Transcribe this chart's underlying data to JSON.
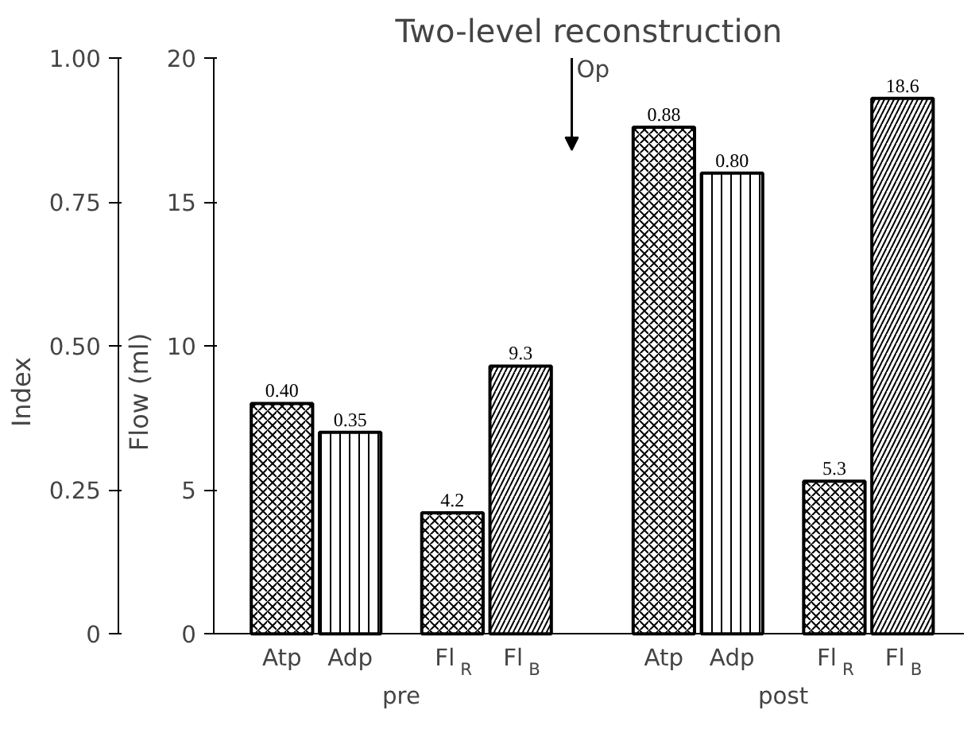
{
  "chart_data": {
    "type": "bar",
    "title": "Two-level reconstruction",
    "ylabel": "Flow (ml)",
    "y2label": "Index",
    "categories": [
      "Atp",
      "Adp",
      "Fl$_{R}$",
      "Fl$_{B}$",
      "Atp",
      "Adp",
      "Fl$_{R}$",
      "Fl$_{B}$"
    ],
    "series": [
      {
        "color": "#000000",
        "axis": "y2",
        "values": [
          0.4,
          null,
          null,
          null,
          0.88,
          null,
          null,
          null
        ],
        "value_labels": [
          "0.40",
          null,
          null,
          null,
          "0.88",
          null,
          null,
          null
        ]
      },
      {
        "color": "#000000",
        "axis": "y2",
        "values": [
          null,
          0.35,
          null,
          null,
          null,
          0.8,
          null,
          null
        ],
        "value_labels": [
          null,
          "0.35",
          null,
          null,
          null,
          "0.80",
          null,
          null
        ]
      },
      {
        "color": "#000000",
        "values": [
          null,
          null,
          4.2,
          null,
          null,
          null,
          5.3,
          null
        ],
        "value_labels": [
          null,
          null,
          "4.2",
          null,
          null,
          null,
          "5.3",
          null
        ]
      },
      {
        "color": "#000000",
        "values": [
          null,
          null,
          null,
          9.3,
          null,
          null,
          null,
          18.6
        ],
        "value_labels": [
          null,
          null,
          null,
          "9.3",
          null,
          null,
          null,
          "18.6"
        ]
      }
    ],
    "ylim": [
      0,
      20
    ],
    "yticks": [
      0,
      5,
      10,
      15,
      20
    ],
    "y2lim": [
      0,
      1
    ],
    "y2ticks": [
      0,
      {
        "value": 0.25,
        "label": "0.25"
      },
      {
        "value": 0.5,
        "label": "0.50"
      },
      {
        "value": 0.75,
        "label": "0.75"
      },
      {
        "value": 1,
        "label": "1.00"
      }
    ],
    "annotations": [
      "pre",
      "post",
      "Op"
    ],
    "grid": false
  }
}
